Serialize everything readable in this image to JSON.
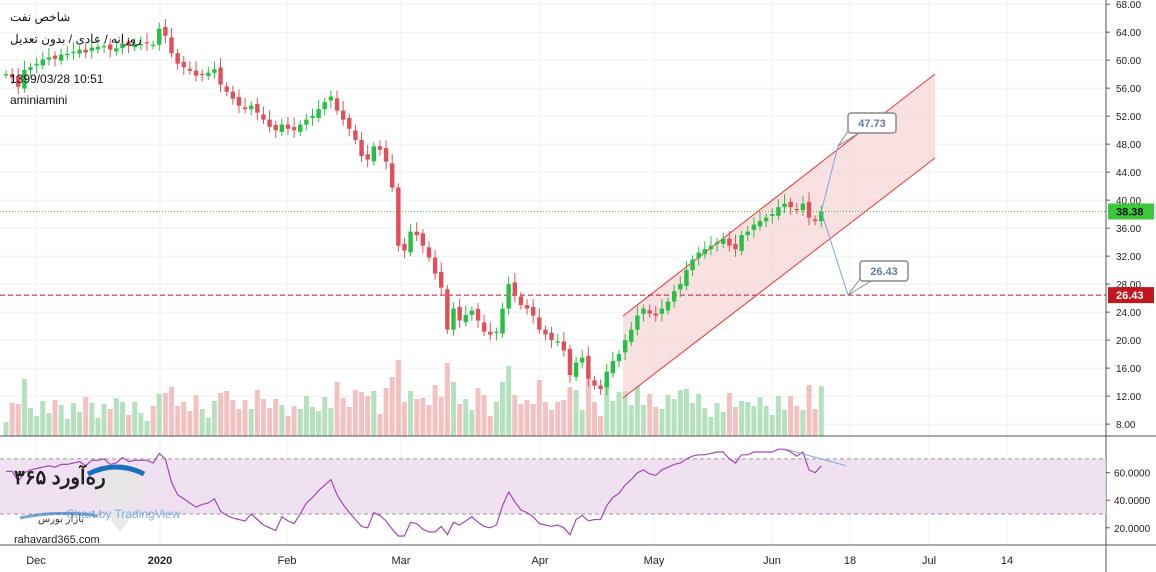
{
  "header": {
    "title": "شاخص نفت",
    "subtitle": "روزانه / عادی / بدون تعدیل",
    "datetime": "1399/03/28 10:51",
    "author": "aminiamini"
  },
  "branding": {
    "watermark": "Chart by TradingView",
    "logo_text": "ره‌آورد ۳۶۵",
    "logo_sub": "بازار بورس",
    "website": "rahavard365.com"
  },
  "colors": {
    "up": "#26c044",
    "down": "#e0505a",
    "channel_fill": "#f6c9c9",
    "channel_line": "#e8383a",
    "rsi_fill": "#ecd9ee",
    "rsi_line": "#a248b4",
    "last_price": "#3cc73c",
    "support": "#c0161d",
    "projection": "#7fa7e0"
  },
  "chart_data": {
    "type": "candlestick",
    "price_axis": {
      "ticks": [
        "68.00",
        "64.00",
        "60.00",
        "56.00",
        "52.00",
        "48.00",
        "44.00",
        "40.00",
        "36.00",
        "32.00",
        "28.00",
        "24.00",
        "20.00",
        "16.00",
        "12.00",
        "8.00"
      ],
      "range": [
        6.3,
        68.6
      ]
    },
    "time_axis": {
      "labels": [
        "Dec",
        "2020",
        "Feb",
        "Mar",
        "Apr",
        "May",
        "Jun",
        "18",
        "Jul",
        "14"
      ]
    },
    "last_price_label": "38.38",
    "support_label": "26.43",
    "annotations": [
      {
        "text": "47.73"
      },
      {
        "text": "26.43"
      }
    ],
    "closes": [
      58.0,
      57.5,
      56.2,
      58.6,
      59.0,
      59.5,
      60.1,
      60.4,
      60.2,
      60.8,
      60.9,
      61.2,
      61.5,
      61.1,
      61.8,
      61.9,
      62.0,
      61.5,
      61.7,
      62.4,
      62.1,
      62.3,
      62.3,
      62.4,
      62.2,
      64.5,
      63.5,
      61.0,
      59.5,
      59.0,
      58.5,
      57.8,
      58.0,
      58.2,
      58.7,
      56.5,
      55.5,
      54.5,
      53.5,
      53.0,
      53.5,
      52.5,
      51.5,
      50.5,
      50.0,
      50.8,
      50.2,
      50.0,
      50.8,
      51.5,
      52.0,
      53.0,
      54.0,
      54.8,
      52.8,
      51.5,
      50.2,
      48.6,
      46.3,
      45.8,
      47.7,
      47.2,
      45.5,
      41.8,
      33.5,
      32.8,
      35.5,
      35.0,
      33.5,
      31.8,
      29.5,
      27.5,
      21.5,
      24.5,
      22.8,
      23.6,
      24.2,
      22.8,
      21.2,
      20.8,
      21.2,
      24.5,
      28.0,
      26.5,
      25.0,
      24.5,
      23.5,
      21.5,
      20.8,
      20.0,
      19.8,
      18.5,
      15.0,
      16.8,
      17.5,
      14.5,
      13.5,
      13.0,
      15.5,
      17.0,
      18.0,
      20.0,
      21.5,
      23.5,
      24.5,
      23.8,
      23.5,
      24.5,
      25.5,
      27.0,
      28.0,
      30.0,
      31.5,
      32.5,
      33.0,
      33.5,
      34.0,
      34.5,
      33.5,
      33.0,
      35.0,
      35.5,
      36.5,
      37.0,
      37.5,
      38.0,
      39.0,
      39.5,
      39.0,
      38.6,
      39.5,
      37.5,
      37.0,
      38.38
    ],
    "volume": {
      "scale": "relative"
    },
    "rsi": {
      "ticks": [
        "60.0000",
        "40.0000",
        "20.0000"
      ],
      "upper": 70,
      "lower": 30,
      "values": [
        61,
        61,
        54,
        60,
        62,
        63,
        64,
        65,
        64,
        66,
        66,
        67,
        68,
        65,
        69,
        69,
        70,
        66,
        67,
        71,
        68,
        69,
        69,
        69,
        67,
        74,
        70,
        53,
        44,
        41,
        38,
        35,
        37,
        38,
        41,
        32,
        29,
        27,
        26,
        25,
        30,
        26,
        22,
        20,
        18,
        28,
        25,
        23,
        30,
        38,
        42,
        47,
        51,
        55,
        44,
        37,
        31,
        26,
        21,
        20,
        31,
        29,
        25,
        19,
        14,
        14,
        24,
        23,
        19,
        17,
        17,
        21,
        15,
        24,
        22,
        25,
        28,
        24,
        21,
        20,
        22,
        36,
        46,
        39,
        33,
        31,
        28,
        23,
        22,
        21,
        22,
        20,
        15,
        26,
        29,
        25,
        26,
        26,
        36,
        42,
        45,
        51,
        55,
        60,
        62,
        59,
        58,
        62,
        64,
        66,
        67,
        70,
        72,
        73,
        73,
        74,
        75,
        75,
        70,
        67,
        73,
        73,
        75,
        75,
        75,
        75,
        77,
        77,
        75,
        72,
        75,
        62,
        60,
        65
      ]
    }
  }
}
